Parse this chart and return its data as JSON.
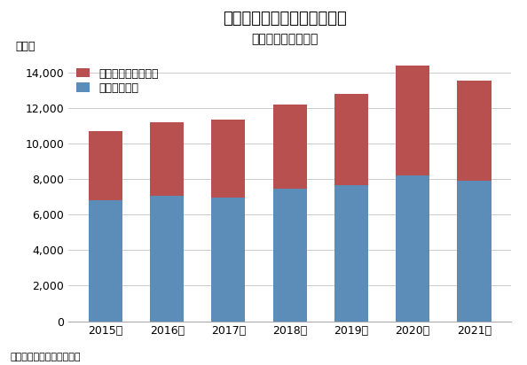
{
  "title": "ペット・ペット用品への支出",
  "subtitle": "（二人以上の世帯）",
  "ylabel": "（円）",
  "source": "資料：家計調査（総務省）",
  "categories": [
    "2015年",
    "2016年",
    "2017年",
    "2018年",
    "2019年",
    "2020年",
    "2021年"
  ],
  "pet_food": [
    6800,
    7050,
    6950,
    7450,
    7650,
    8200,
    7900
  ],
  "pet_goods": [
    3900,
    4150,
    4400,
    4750,
    5150,
    6200,
    5650
  ],
  "color_food": "#5B8DB8",
  "color_goods": "#B85050",
  "ylim": [
    0,
    15000
  ],
  "yticks": [
    0,
    2000,
    4000,
    6000,
    8000,
    10000,
    12000,
    14000
  ],
  "legend_food": "ペットフード",
  "legend_goods": "ペット・ペット用品",
  "background_color": "#ffffff",
  "title_fontsize": 13,
  "subtitle_fontsize": 10,
  "tick_fontsize": 9,
  "legend_fontsize": 9,
  "source_fontsize": 8
}
